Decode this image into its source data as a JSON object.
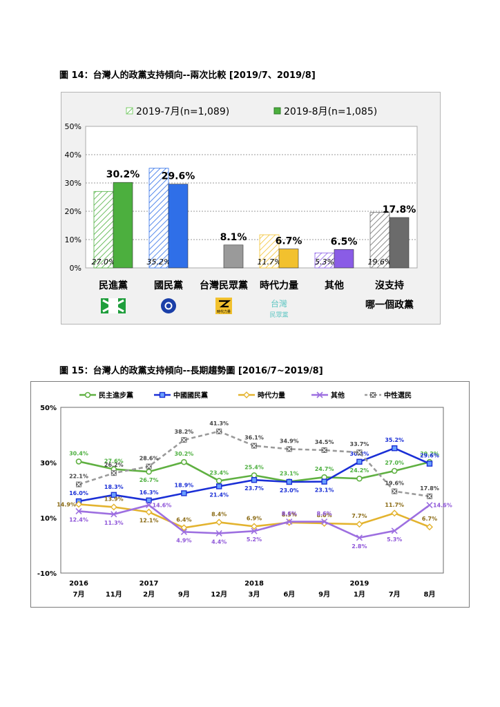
{
  "figure14": {
    "title": "圖 14：台灣人的政黨支持傾向--兩次比較  [2019/7、2019/8]",
    "chart_data": {
      "type": "bar",
      "categories": [
        "民進黨",
        "國民黨",
        "台灣民眾黨",
        "時代力量",
        "其他",
        "沒支持"
      ],
      "category_sublabels": [
        "",
        "",
        "",
        "",
        "",
        "哪一個政黨"
      ],
      "series": [
        {
          "name": "2019-7月(n=1,089)",
          "style": "hatched",
          "values": [
            27.0,
            35.2,
            null,
            11.7,
            5.3,
            19.6
          ],
          "labels": [
            "27.0%",
            "35.2%",
            "",
            "11.7%",
            "5.3%",
            "19.6%"
          ]
        },
        {
          "name": "2019-8月(n=1,085)",
          "style": "solid",
          "values": [
            30.2,
            29.6,
            8.1,
            6.7,
            6.5,
            17.8
          ],
          "labels": [
            "30.2%",
            "29.6%",
            "8.1%",
            "6.7%",
            "6.5%",
            "17.8%"
          ]
        }
      ],
      "colors": {
        "民進黨": "#4caf3e",
        "國民黨": "#2f6fe8",
        "台灣民眾黨": "#9a9a9a",
        "時代力量": "#f2c12e",
        "其他": "#8a5ce6",
        "沒支持": "#6b6b6b"
      },
      "yticks": [
        "50%",
        "40%",
        "30%",
        "20%",
        "10%",
        "0%"
      ],
      "ylim": [
        0,
        50
      ],
      "grid": true,
      "legend": "top",
      "party_logos": [
        "dpp-logo",
        "kmt-logo",
        "tpp-logo",
        "npp-logo"
      ],
      "logo_text": {
        "npp": "時代力量",
        "tpp_line1": "台灣",
        "tpp_line2": "民眾黨"
      }
    }
  },
  "figure15": {
    "title": "圖 15：台灣人的政黨支持傾向--長期趨勢圖  [2016/7~2019/8]",
    "chart_data": {
      "type": "line",
      "x_labels": [
        "7月",
        "11月",
        "2月",
        "9月",
        "12月",
        "3月",
        "6月",
        "9月",
        "1月",
        "7月",
        "8月"
      ],
      "year_labels": [
        {
          "index": 0,
          "label": "2016"
        },
        {
          "index": 2,
          "label": "2017"
        },
        {
          "index": 5,
          "label": "2018"
        },
        {
          "index": 8,
          "label": "2019"
        }
      ],
      "yticks": [
        "50%",
        "30%",
        "10%",
        "-10%"
      ],
      "ylim": [
        -10,
        50
      ],
      "legend": "top",
      "series": [
        {
          "name": "民主進步黨",
          "color": "#5fb041",
          "marker": "circle",
          "values": [
            30.4,
            27.6,
            26.7,
            30.2,
            23.4,
            25.4,
            23.1,
            24.7,
            24.2,
            27.0,
            30.2
          ],
          "labels": [
            "30.4%",
            "27.6%",
            "26.7%",
            "30.2%",
            "23.4%",
            "25.4%",
            "23.1%",
            "24.7%",
            "24.2%",
            "27.0%",
            "30.2%"
          ],
          "label_pos": [
            "above",
            "above",
            "below",
            "above",
            "above",
            "above",
            "above",
            "above",
            "above",
            "above",
            "above"
          ]
        },
        {
          "name": "中國國民黨",
          "color": "#1a2fd6",
          "marker": "square",
          "values": [
            16.0,
            18.3,
            16.3,
            18.9,
            21.4,
            23.7,
            23.0,
            23.1,
            30.3,
            35.2,
            29.6
          ],
          "labels": [
            "16.0%",
            "18.3%",
            "16.3%",
            "18.9%",
            "21.4%",
            "23.7%",
            "23.0%",
            "23.1%",
            "30.3%",
            "35.2%",
            "29.6%"
          ],
          "label_pos": [
            "above",
            "above",
            "above",
            "above",
            "below",
            "below",
            "below",
            "below",
            "above",
            "above",
            "above"
          ]
        },
        {
          "name": "時代力量",
          "color": "#e3b32e",
          "marker": "diamond",
          "values": [
            14.9,
            13.9,
            12.1,
            6.4,
            8.4,
            6.9,
            8.3,
            8.0,
            7.7,
            11.7,
            6.7
          ],
          "labels": [
            "14.9%",
            "13.9%",
            "12.1%",
            "6.4%",
            "8.4%",
            "6.9%",
            "8.3%",
            "8.0%",
            "7.7%",
            "11.7%",
            "6.7%"
          ],
          "label_pos": [
            "left",
            "above",
            "below",
            "above",
            "above",
            "above",
            "above",
            "above",
            "above",
            "above",
            "above"
          ]
        },
        {
          "name": "其他",
          "color": "#9d6fe0",
          "marker": "x",
          "values": [
            12.4,
            11.3,
            14.6,
            4.9,
            4.4,
            5.2,
            8.6,
            8.6,
            2.8,
            5.3,
            14.6
          ],
          "labels": [
            "12.4%",
            "11.3%",
            "14.6%",
            "4.9%",
            "4.4%",
            "5.2%",
            "8.6%",
            "8.6%",
            "2.8%",
            "5.3%",
            "14.6%"
          ],
          "label_pos": [
            "below",
            "below",
            "right",
            "below",
            "below",
            "below",
            "above",
            "above",
            "below",
            "below",
            "right"
          ]
        },
        {
          "name": "中性選民",
          "color": "#9a9a9a",
          "marker": "x-square",
          "dashed": true,
          "values": [
            22.1,
            26.2,
            28.6,
            38.2,
            41.3,
            36.1,
            34.9,
            34.5,
            33.7,
            19.6,
            17.8
          ],
          "labels": [
            "22.1%",
            "26.2%",
            "28.6%",
            "38.2%",
            "41.3%",
            "36.1%",
            "34.9%",
            "34.5%",
            "33.7%",
            "19.6%",
            "17.8%"
          ],
          "label_pos": [
            "above",
            "above",
            "above",
            "above",
            "above",
            "above",
            "above",
            "above",
            "above",
            "above",
            "above"
          ]
        }
      ]
    }
  }
}
